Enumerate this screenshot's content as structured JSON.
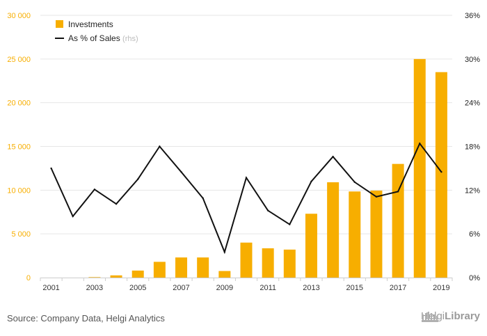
{
  "chart_data": {
    "type": "bar",
    "x": [
      "2001",
      "2002",
      "2003",
      "2004",
      "2005",
      "2006",
      "2007",
      "2008",
      "2009",
      "2010",
      "2011",
      "2012",
      "2013",
      "2014",
      "2015",
      "2016",
      "2017",
      "2018",
      "2019"
    ],
    "x_tick_labels": [
      "2001",
      "2003",
      "2005",
      "2007",
      "2009",
      "2011",
      "2013",
      "2015",
      "2017",
      "2019"
    ],
    "series": [
      {
        "name": "Investments",
        "kind": "bar",
        "axis": "left",
        "color": "#f7ae00",
        "values": [
          0,
          0,
          50,
          250,
          800,
          1800,
          2300,
          2300,
          750,
          4000,
          3350,
          3200,
          7300,
          10900,
          9850,
          9950,
          13000,
          25000,
          23500
        ]
      },
      {
        "name": "As % of Sales",
        "kind": "line",
        "axis": "right",
        "color": "#111111",
        "values": [
          15.0,
          8.4,
          12.1,
          10.1,
          13.5,
          18.0,
          14.5,
          10.9,
          3.5,
          13.7,
          9.2,
          7.3,
          13.2,
          16.6,
          13.1,
          11.1,
          11.8,
          18.4,
          14.5
        ]
      }
    ],
    "y_left": {
      "range": [
        0,
        30000
      ],
      "ticks": [
        "0",
        "5 000",
        "10 000",
        "15 000",
        "20 000",
        "25 000",
        "30 000"
      ],
      "color": "#f7ae00"
    },
    "y_right": {
      "range": [
        0,
        36
      ],
      "ticks": [
        "0%",
        "6%",
        "12%",
        "18%",
        "24%",
        "30%",
        "36%"
      ]
    },
    "grid": true,
    "legend_position": "top-left",
    "legend_suffix": "(rhs)"
  },
  "footer": {
    "source": "Source: Company Data, Helgi Analytics",
    "logo_part1": "Helgi",
    "logo_part2": "Library"
  }
}
